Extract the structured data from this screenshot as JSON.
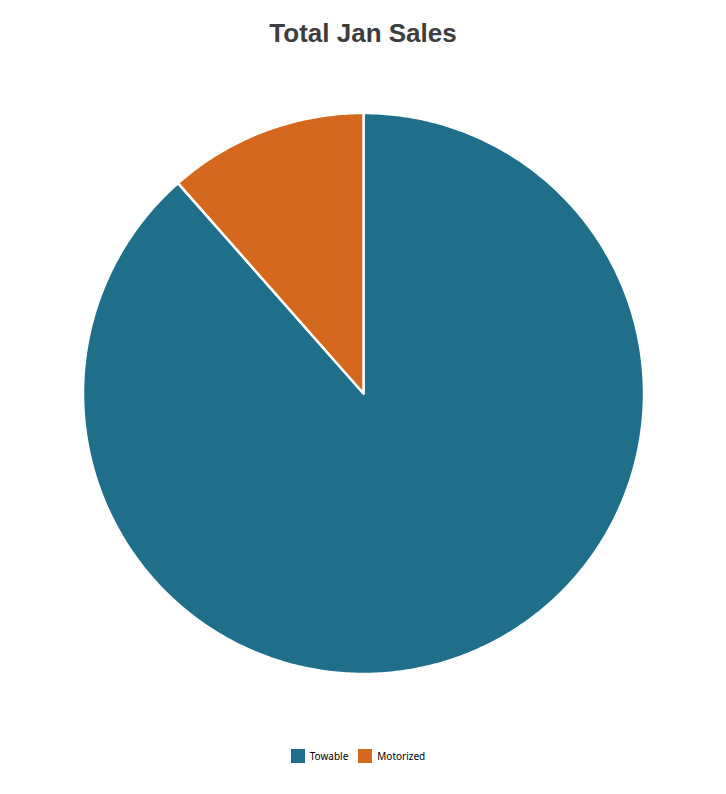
{
  "chart_data": {
    "type": "pie",
    "title": "Total Jan Sales",
    "categories": [
      "Towable",
      "Motorized"
    ],
    "values": [
      88.5,
      11.5
    ],
    "colors": [
      "#1f6f8b",
      "#d4691e"
    ],
    "legend": "bottom"
  }
}
